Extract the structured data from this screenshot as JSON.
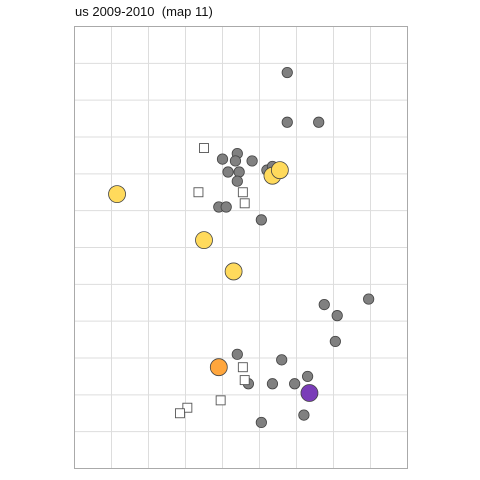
{
  "chart_data": {
    "type": "scatter",
    "title": "us 2009-2010  (map 11)",
    "xlabel": "",
    "ylabel": "",
    "xlim": [
      0,
      9
    ],
    "ylim": [
      0,
      12
    ],
    "grid": true,
    "legend": "none",
    "colors": {
      "gray": "#808080",
      "yellow": "#FFDA5C",
      "orange": "#FFA63D",
      "purple": "#7A3DB8",
      "outline": "#333333",
      "grid": "#dddddd",
      "frame": "#aaaaaa"
    },
    "series": [
      {
        "marker": "circle-small",
        "color": "gray",
        "points": [
          [
            5.75,
            10.75
          ],
          [
            5.75,
            9.4
          ],
          [
            6.6,
            9.4
          ],
          [
            4.0,
            8.4
          ],
          [
            4.4,
            8.55
          ],
          [
            4.35,
            8.35
          ],
          [
            4.8,
            8.35
          ],
          [
            4.15,
            8.05
          ],
          [
            4.45,
            8.05
          ],
          [
            4.4,
            7.8
          ],
          [
            5.2,
            8.1
          ],
          [
            5.35,
            8.2
          ],
          [
            3.9,
            7.1
          ],
          [
            4.1,
            7.1
          ],
          [
            5.05,
            6.75
          ],
          [
            6.75,
            4.45
          ],
          [
            7.1,
            4.15
          ],
          [
            7.95,
            4.6
          ],
          [
            7.05,
            3.45
          ],
          [
            4.4,
            3.1
          ],
          [
            5.6,
            2.95
          ],
          [
            6.3,
            2.5
          ],
          [
            5.95,
            2.3
          ],
          [
            6.2,
            1.45
          ],
          [
            4.7,
            2.3
          ],
          [
            5.35,
            2.3
          ],
          [
            5.05,
            1.25
          ]
        ]
      },
      {
        "marker": "square-open",
        "color": "outline",
        "points": [
          [
            3.5,
            8.7
          ],
          [
            4.55,
            7.5
          ],
          [
            3.35,
            7.5
          ],
          [
            4.6,
            7.2
          ],
          [
            4.55,
            2.75
          ],
          [
            4.6,
            2.4
          ],
          [
            3.95,
            1.85
          ],
          [
            3.05,
            1.65
          ],
          [
            2.85,
            1.5
          ]
        ]
      },
      {
        "marker": "circle-large",
        "color": "yellow",
        "points": [
          [
            1.15,
            7.45
          ],
          [
            5.35,
            7.95
          ],
          [
            5.55,
            8.1
          ],
          [
            3.5,
            6.2
          ],
          [
            4.3,
            5.35
          ]
        ]
      },
      {
        "marker": "circle-large",
        "color": "orange",
        "points": [
          [
            3.9,
            2.75
          ]
        ]
      },
      {
        "marker": "circle-large",
        "color": "purple",
        "points": [
          [
            6.35,
            2.05
          ]
        ]
      }
    ]
  }
}
